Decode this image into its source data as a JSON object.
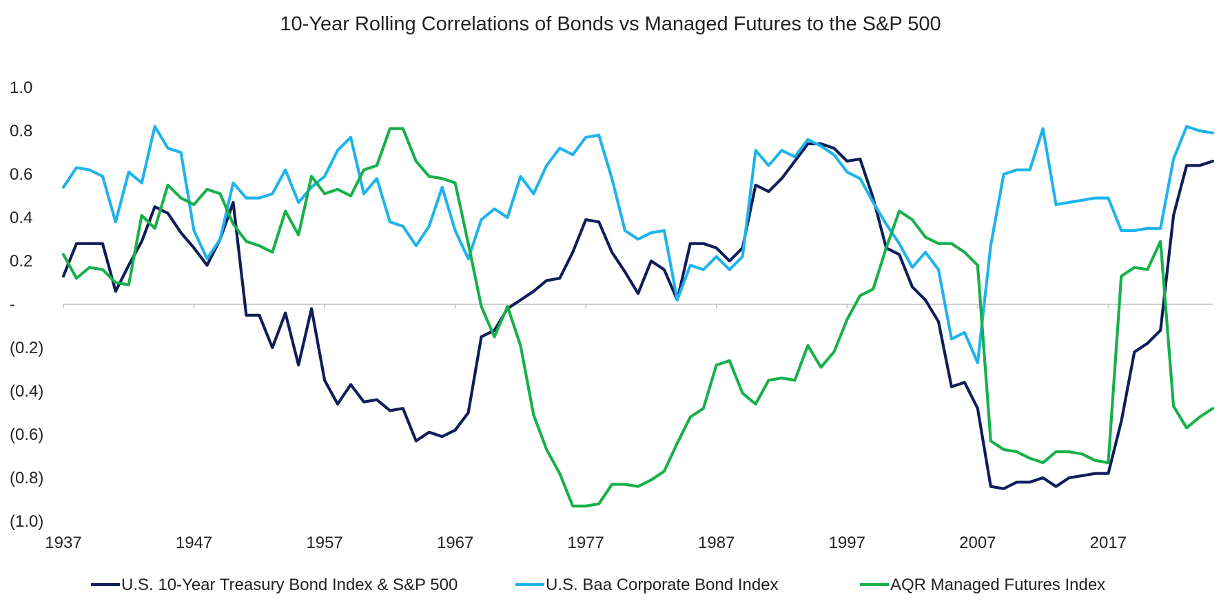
{
  "chart_data": {
    "type": "line",
    "title": "10-Year Rolling Correlations of Bonds vs Managed Futures to the S&P 500",
    "xlabel": "",
    "ylabel": "",
    "ylim": [
      -1.0,
      1.0
    ],
    "xlim": [
      1937,
      2025
    ],
    "grid": false,
    "legend_position": "bottom",
    "x_ticks": [
      1937,
      1947,
      1957,
      1967,
      1977,
      1987,
      1997,
      2007,
      2017
    ],
    "x_tick_labels": [
      "1937",
      "1947",
      "1957",
      "1967",
      "1977",
      "1987",
      "1997",
      "2007",
      "2017"
    ],
    "y_ticks": [
      1.0,
      0.8,
      0.6,
      0.4,
      0.2,
      0.0,
      -0.2,
      -0.4,
      -0.6,
      -0.8,
      -1.0
    ],
    "y_tick_labels": [
      "1.0",
      "0.8",
      "0.6",
      "0.4",
      "0.2",
      "-",
      "(0.2)",
      "(0.4)",
      "(0.6)",
      "(0.8)",
      "(1.0)"
    ],
    "series": [
      {
        "name": "U.S. 10-Year Treasury Bond Index & S&P 500",
        "color": "#0f1e5a",
        "x": [
          1937,
          1938,
          1939,
          1940,
          1941,
          1942,
          1943,
          1944,
          1945,
          1946,
          1947,
          1948,
          1949,
          1950,
          1951,
          1952,
          1953,
          1954,
          1955,
          1956,
          1957,
          1958,
          1959,
          1960,
          1961,
          1962,
          1963,
          1964,
          1965,
          1966,
          1967,
          1968,
          1969,
          1970,
          1971,
          1972,
          1973,
          1974,
          1975,
          1976,
          1977,
          1978,
          1979,
          1980,
          1981,
          1982,
          1983,
          1984,
          1985,
          1986,
          1987,
          1988,
          1989,
          1990,
          1991,
          1992,
          1993,
          1994,
          1995,
          1996,
          1997,
          1998,
          1999,
          2000,
          2001,
          2002,
          2003,
          2004,
          2005,
          2006,
          2007,
          2008,
          2009,
          2010,
          2011,
          2012,
          2013,
          2014,
          2015,
          2016,
          2017,
          2018,
          2019,
          2020,
          2021,
          2022,
          2023,
          2024,
          2025
        ],
        "values": [
          0.13,
          0.28,
          0.28,
          0.28,
          0.06,
          0.18,
          0.29,
          0.45,
          0.42,
          0.33,
          0.26,
          0.18,
          0.3,
          0.47,
          -0.05,
          -0.05,
          -0.2,
          -0.04,
          -0.28,
          -0.02,
          -0.35,
          -0.46,
          -0.37,
          -0.45,
          -0.44,
          -0.49,
          -0.48,
          -0.63,
          -0.59,
          -0.61,
          -0.58,
          -0.5,
          -0.15,
          -0.12,
          -0.02,
          0.02,
          0.06,
          0.11,
          0.12,
          0.24,
          0.39,
          0.38,
          0.24,
          0.15,
          0.05,
          0.2,
          0.16,
          0.02,
          0.28,
          0.28,
          0.26,
          0.2,
          0.26,
          0.55,
          0.52,
          0.58,
          0.66,
          0.74,
          0.74,
          0.72,
          0.66,
          0.67,
          0.49,
          0.26,
          0.23,
          0.08,
          0.02,
          -0.08,
          -0.38,
          -0.36,
          -0.48,
          -0.84,
          -0.85,
          -0.82,
          -0.82,
          -0.8,
          -0.84,
          -0.8,
          -0.79,
          -0.78,
          -0.78,
          -0.54,
          -0.22,
          -0.18,
          -0.12,
          0.41,
          0.64,
          0.64,
          0.66
        ]
      },
      {
        "name": "U.S. Baa Corporate Bond Index",
        "color": "#1fb3ec",
        "x": [
          1937,
          1938,
          1939,
          1940,
          1941,
          1942,
          1943,
          1944,
          1945,
          1946,
          1947,
          1948,
          1949,
          1950,
          1951,
          1952,
          1953,
          1954,
          1955,
          1956,
          1957,
          1958,
          1959,
          1960,
          1961,
          1962,
          1963,
          1964,
          1965,
          1966,
          1967,
          1968,
          1969,
          1970,
          1971,
          1972,
          1973,
          1974,
          1975,
          1976,
          1977,
          1978,
          1979,
          1980,
          1981,
          1982,
          1983,
          1984,
          1985,
          1986,
          1987,
          1988,
          1989,
          1990,
          1991,
          1992,
          1993,
          1994,
          1995,
          1996,
          1997,
          1998,
          1999,
          2000,
          2001,
          2002,
          2003,
          2004,
          2005,
          2006,
          2007,
          2008,
          2009,
          2010,
          2011,
          2012,
          2013,
          2014,
          2015,
          2016,
          2017,
          2018,
          2019,
          2020,
          2021,
          2022,
          2023,
          2024,
          2025
        ],
        "values": [
          0.54,
          0.63,
          0.62,
          0.59,
          0.38,
          0.61,
          0.56,
          0.82,
          0.72,
          0.7,
          0.34,
          0.21,
          0.3,
          0.56,
          0.49,
          0.49,
          0.51,
          0.62,
          0.47,
          0.54,
          0.59,
          0.71,
          0.77,
          0.51,
          0.58,
          0.38,
          0.36,
          0.27,
          0.36,
          0.54,
          0.34,
          0.21,
          0.39,
          0.44,
          0.4,
          0.59,
          0.51,
          0.64,
          0.72,
          0.69,
          0.77,
          0.78,
          0.58,
          0.34,
          0.3,
          0.33,
          0.34,
          0.02,
          0.18,
          0.16,
          0.22,
          0.16,
          0.22,
          0.71,
          0.64,
          0.71,
          0.68,
          0.76,
          0.73,
          0.69,
          0.61,
          0.58,
          0.47,
          0.37,
          0.28,
          0.17,
          0.24,
          0.16,
          -0.16,
          -0.13,
          -0.27,
          0.27,
          0.6,
          0.62,
          0.62,
          0.81,
          0.46,
          0.47,
          0.48,
          0.49,
          0.49,
          0.34,
          0.34,
          0.35,
          0.35,
          0.67,
          0.82,
          0.8,
          0.79
        ]
      },
      {
        "name": "AQR Managed Futures Index",
        "color": "#17b04b",
        "x": [
          1937,
          1938,
          1939,
          1940,
          1941,
          1942,
          1943,
          1944,
          1945,
          1946,
          1947,
          1948,
          1949,
          1950,
          1951,
          1952,
          1953,
          1954,
          1955,
          1956,
          1957,
          1958,
          1959,
          1960,
          1961,
          1962,
          1963,
          1964,
          1965,
          1966,
          1967,
          1968,
          1969,
          1970,
          1971,
          1972,
          1973,
          1974,
          1975,
          1976,
          1977,
          1978,
          1979,
          1980,
          1981,
          1982,
          1983,
          1984,
          1985,
          1986,
          1987,
          1988,
          1989,
          1990,
          1991,
          1992,
          1993,
          1994,
          1995,
          1996,
          1997,
          1998,
          1999,
          2000,
          2001,
          2002,
          2003,
          2004,
          2005,
          2006,
          2007,
          2008,
          2009,
          2010,
          2011,
          2012,
          2013,
          2014,
          2015,
          2016,
          2017,
          2018,
          2019,
          2020,
          2021,
          2022,
          2023,
          2024,
          2025
        ],
        "values": [
          0.23,
          0.12,
          0.17,
          0.16,
          0.1,
          0.09,
          0.41,
          0.35,
          0.55,
          0.49,
          0.46,
          0.53,
          0.51,
          0.37,
          0.29,
          0.27,
          0.24,
          0.43,
          0.32,
          0.59,
          0.51,
          0.53,
          0.5,
          0.62,
          0.64,
          0.81,
          0.81,
          0.66,
          0.59,
          0.58,
          0.56,
          0.28,
          -0.01,
          -0.15,
          -0.01,
          -0.19,
          -0.51,
          -0.67,
          -0.78,
          -0.93,
          -0.93,
          -0.92,
          -0.83,
          -0.83,
          -0.84,
          -0.81,
          -0.77,
          -0.64,
          -0.52,
          -0.48,
          -0.28,
          -0.26,
          -0.41,
          -0.46,
          -0.35,
          -0.34,
          -0.35,
          -0.19,
          -0.29,
          -0.22,
          -0.07,
          0.04,
          0.07,
          0.26,
          0.43,
          0.39,
          0.31,
          0.28,
          0.28,
          0.24,
          0.18,
          -0.63,
          -0.67,
          -0.68,
          -0.71,
          -0.73,
          -0.68,
          -0.68,
          -0.69,
          -0.72,
          -0.73,
          0.13,
          0.17,
          0.16,
          0.29,
          -0.47,
          -0.57,
          -0.52,
          -0.48
        ]
      }
    ]
  }
}
